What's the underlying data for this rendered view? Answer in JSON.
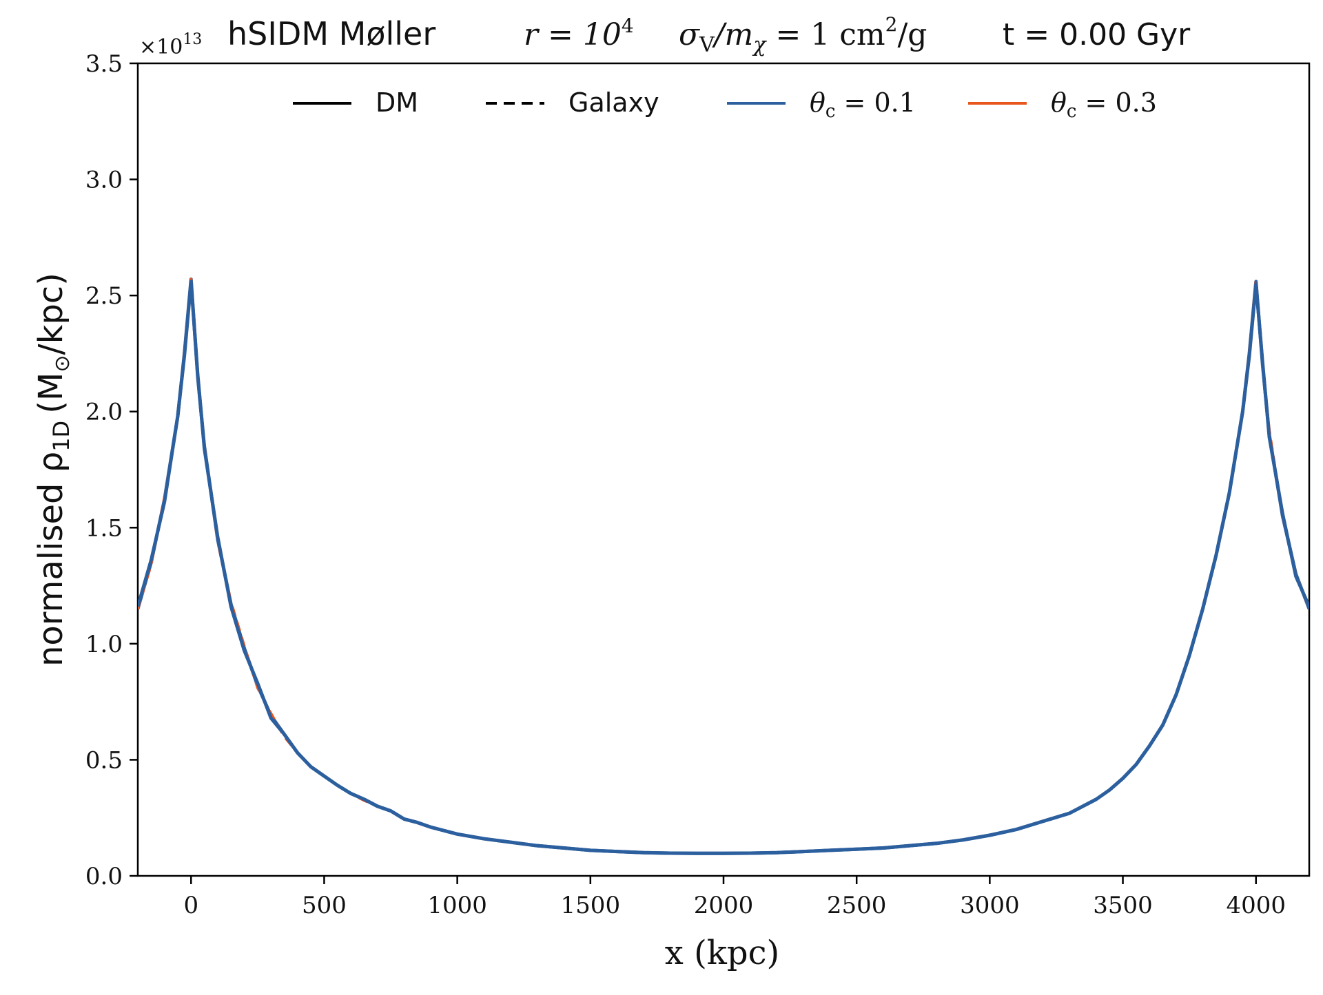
{
  "chart_data": {
    "type": "line",
    "title": {
      "prefix": "hSIDM Møller",
      "r_label": "r = 10",
      "r_exp": "4",
      "sigma_label": "σ",
      "sigma_sub": "V",
      "sigma_mid": "/m",
      "sigma_sub2": "χ",
      "sigma_rest": " = 1 cm",
      "sigma_exp": "2",
      "sigma_unit": "/g",
      "time": "t = 0.00 Gyr"
    },
    "offset_text": "×10",
    "offset_exp": "13",
    "xlabel": "x (kpc)",
    "ylabel": "normalised ρ",
    "ylabel_sub": "1D",
    "ylabel_unit": "(M",
    "ylabel_unit_sub": "⊙",
    "ylabel_unit_rest": "/kpc)",
    "xlim": [
      -200,
      4200
    ],
    "ylim": [
      0,
      3.5
    ],
    "x_ticks": [
      0,
      500,
      1000,
      1500,
      2000,
      2500,
      3000,
      3500,
      4000
    ],
    "x_tick_labels": [
      "0",
      "500",
      "1000",
      "1500",
      "2000",
      "2500",
      "3000",
      "3500",
      "4000"
    ],
    "y_ticks": [
      0,
      0.5,
      1.0,
      1.5,
      2.0,
      2.5,
      3.0,
      3.5
    ],
    "y_tick_labels": [
      "0.0",
      "0.5",
      "1.0",
      "1.5",
      "2.0",
      "2.5",
      "3.0",
      "3.5"
    ],
    "grid": false,
    "legend": {
      "placement": "top-center",
      "entries": [
        {
          "label": "DM",
          "style": "solid",
          "color": "#000000"
        },
        {
          "label": "Galaxy",
          "style": "dashed",
          "color": "#000000"
        },
        {
          "label_main": "θ",
          "label_sub": "c",
          "label_rest": " = 0.1",
          "style": "solid",
          "color": "#2c5f9e"
        },
        {
          "label_main": "θ",
          "label_sub": "c",
          "label_rest": " = 0.3",
          "style": "solid",
          "color": "#e8561e"
        }
      ]
    },
    "x": [
      -200,
      -150,
      -100,
      -50,
      -25,
      0,
      25,
      50,
      100,
      150,
      200,
      250,
      300,
      350,
      400,
      450,
      500,
      550,
      600,
      650,
      700,
      750,
      800,
      850,
      900,
      1000,
      1100,
      1200,
      1300,
      1400,
      1500,
      1600,
      1700,
      1800,
      1900,
      2000,
      2100,
      2200,
      2300,
      2400,
      2500,
      2600,
      2700,
      2800,
      2900,
      3000,
      3100,
      3200,
      3300,
      3400,
      3450,
      3500,
      3550,
      3600,
      3650,
      3700,
      3750,
      3800,
      3850,
      3900,
      3950,
      3975,
      4000,
      4025,
      4050,
      4100,
      4150,
      4200
    ],
    "series": [
      {
        "color": "#2c5f9e",
        "style": "solid",
        "values": [
          1.15,
          1.35,
          1.62,
          1.98,
          2.25,
          2.57,
          2.15,
          1.85,
          1.45,
          1.17,
          0.98,
          0.82,
          0.69,
          0.61,
          0.53,
          0.47,
          0.43,
          0.39,
          0.355,
          0.33,
          0.3,
          0.28,
          0.245,
          0.23,
          0.21,
          0.18,
          0.16,
          0.145,
          0.13,
          0.12,
          0.11,
          0.105,
          0.1,
          0.098,
          0.097,
          0.097,
          0.098,
          0.1,
          0.105,
          0.11,
          0.115,
          0.12,
          0.13,
          0.14,
          0.155,
          0.175,
          0.2,
          0.235,
          0.27,
          0.33,
          0.37,
          0.42,
          0.48,
          0.56,
          0.65,
          0.78,
          0.95,
          1.15,
          1.38,
          1.65,
          2.0,
          2.25,
          2.56,
          2.2,
          1.9,
          1.55,
          1.3,
          1.15
        ]
      },
      {
        "color": "#e8561e",
        "style": "dashed",
        "values": [
          1.15,
          1.34,
          1.63,
          1.97,
          2.26,
          2.57,
          2.14,
          1.86,
          1.44,
          1.18,
          0.99,
          0.81,
          0.7,
          0.6,
          0.53,
          0.47,
          0.43,
          0.39,
          0.355,
          0.325,
          0.3,
          0.28,
          0.245,
          0.23,
          0.21,
          0.18,
          0.16,
          0.145,
          0.13,
          0.12,
          0.11,
          0.105,
          0.1,
          0.098,
          0.097,
          0.097,
          0.098,
          0.1,
          0.105,
          0.11,
          0.115,
          0.12,
          0.13,
          0.14,
          0.155,
          0.175,
          0.2,
          0.235,
          0.27,
          0.33,
          0.37,
          0.42,
          0.48,
          0.56,
          0.65,
          0.78,
          0.95,
          1.15,
          1.38,
          1.65,
          2.0,
          2.26,
          2.57,
          2.2,
          1.92,
          1.55,
          1.3,
          1.15
        ]
      },
      {
        "color": "#2c5f9e",
        "style": "solid",
        "values": [
          1.16,
          1.36,
          1.61,
          1.98,
          2.24,
          2.56,
          2.16,
          1.84,
          1.46,
          1.16,
          0.97,
          0.83,
          0.68,
          0.61,
          0.53,
          0.47,
          0.43,
          0.39,
          0.355,
          0.33,
          0.3,
          0.28,
          0.245,
          0.23,
          0.21,
          0.18,
          0.16,
          0.145,
          0.13,
          0.12,
          0.11,
          0.105,
          0.1,
          0.098,
          0.097,
          0.097,
          0.098,
          0.1,
          0.105,
          0.11,
          0.115,
          0.12,
          0.13,
          0.14,
          0.155,
          0.175,
          0.2,
          0.235,
          0.27,
          0.33,
          0.37,
          0.42,
          0.48,
          0.56,
          0.65,
          0.78,
          0.95,
          1.15,
          1.38,
          1.65,
          2.0,
          2.24,
          2.55,
          2.21,
          1.89,
          1.56,
          1.29,
          1.16
        ]
      }
    ]
  }
}
